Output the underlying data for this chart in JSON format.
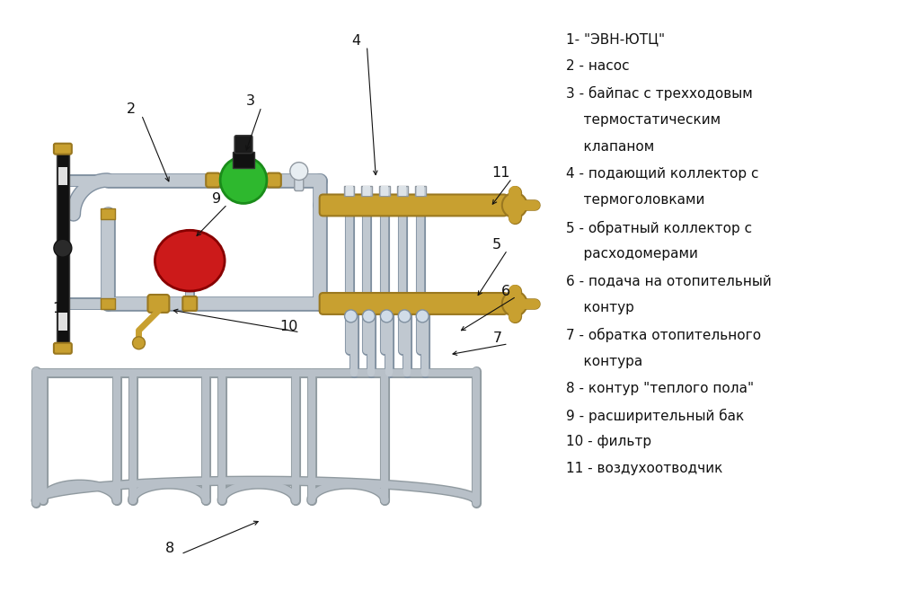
{
  "bg_color": "#ffffff",
  "fig_width": 10.24,
  "fig_height": 6.59,
  "legend_lines": [
    "1- \"ЭВН-ЮТЦ\"",
    "2 - насос",
    "3 - байпас с трехходовым",
    "    термостатическим",
    "    клапаном",
    "4 - подающий коллектор с",
    "    термоголовками",
    "5 - обратный коллектор с",
    "    расходомерами",
    "6 - подача на отопительный",
    "    контур",
    "7 - обратка отопительного",
    "    контура",
    "8 - контур \"теплого пола\"",
    "9 - расширительный бак",
    "10 - фильтр",
    "11 - воздухоотводчик"
  ],
  "pipe_color": "#c0c8d0",
  "pipe_edge": "#8090a0",
  "brass_color": "#c8a030",
  "brass_dark": "#9a7820",
  "green_color": "#2eb82e",
  "red_color": "#cc1a1a",
  "black_color": "#111111",
  "dark_gray": "#333333",
  "label_color": "#111111",
  "floor_pipe": "#b8c0c8"
}
